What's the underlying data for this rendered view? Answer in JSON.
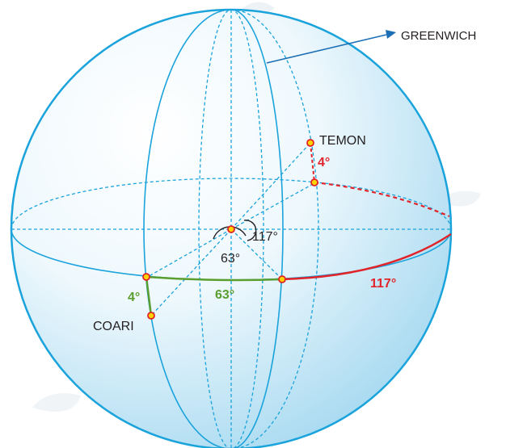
{
  "labels": {
    "greenwich": "GREENWICH",
    "temon": "TEMON",
    "coari": "COARI",
    "temon_lat": "4°",
    "coari_lat": "4°",
    "angle_117_center": "117°",
    "angle_63_center": "63°",
    "arc_63": "63°",
    "arc_117": "117°"
  },
  "colors": {
    "globe_outline": "#1ba3dc",
    "dashed_lines": "#1ba3dc",
    "red_arc": "#e0242a",
    "green_arc": "#5a9e2f",
    "point_fill": "#ffd400",
    "point_stroke": "#e0242a",
    "arrow": "#1c6fb5",
    "text": "#231f20",
    "watermark": "#dde5ec"
  }
}
